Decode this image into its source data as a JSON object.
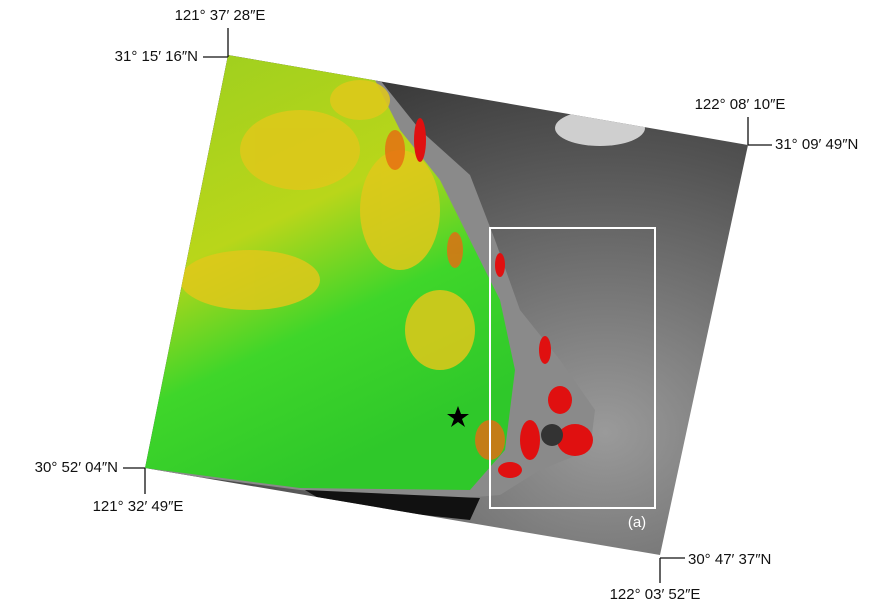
{
  "labels": {
    "top_lon": "121° 37′ 28″E",
    "top_lat": "31° 15′ 16″N",
    "right_lon": "122° 08′ 10″E",
    "right_lat": "31° 09′ 49″N",
    "left_lat": "30° 52′ 04″N",
    "left_lon": "121° 32′ 49″E",
    "bottom_lat": "30° 47′ 37″N",
    "bottom_lon": "122° 03′ 52″E"
  },
  "panel_label": "(a)"
}
